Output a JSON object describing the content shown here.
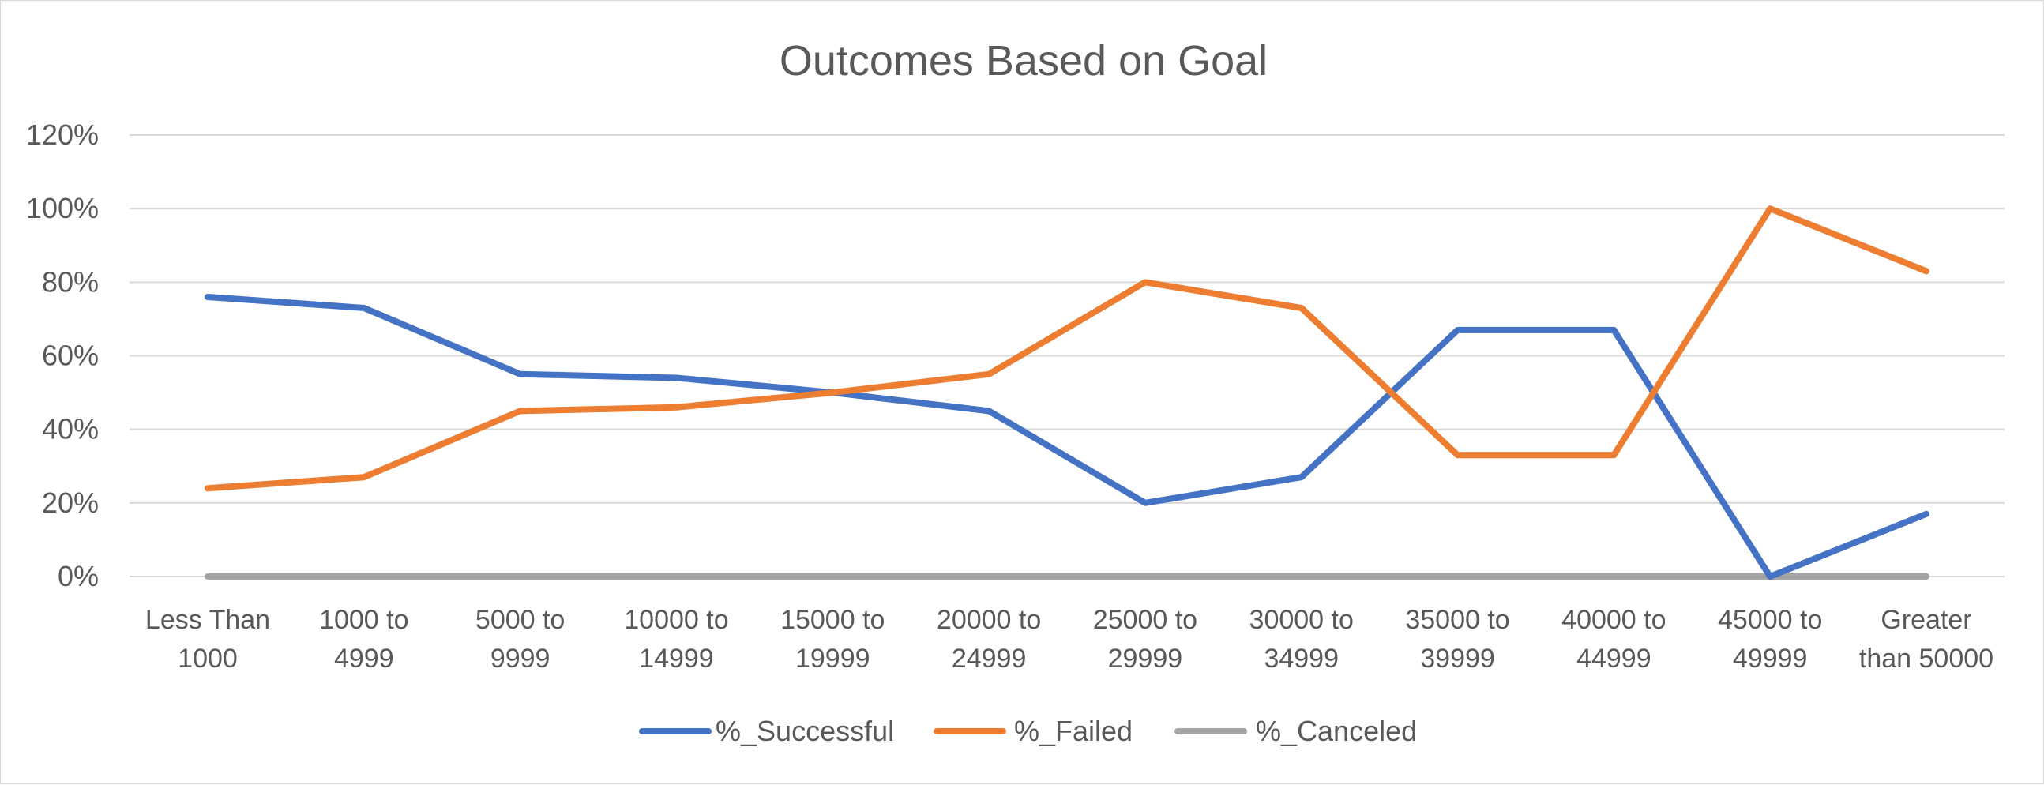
{
  "chart_data": {
    "type": "line",
    "title": "Outcomes Based on Goal",
    "xlabel": "",
    "ylabel": "",
    "ylim": [
      0,
      120
    ],
    "ytick_step": 20,
    "ytick_labels": [
      "0%",
      "20%",
      "40%",
      "60%",
      "80%",
      "100%",
      "120%"
    ],
    "grid": true,
    "legend_position": "bottom",
    "categories": [
      [
        "Less Than",
        "1000"
      ],
      [
        "1000 to",
        "4999"
      ],
      [
        "5000 to",
        "9999"
      ],
      [
        "10000 to",
        "14999"
      ],
      [
        "15000 to",
        "19999"
      ],
      [
        "20000 to",
        "24999"
      ],
      [
        "25000 to",
        "29999"
      ],
      [
        "30000 to",
        "34999"
      ],
      [
        "35000 to",
        "39999"
      ],
      [
        "40000 to",
        "44999"
      ],
      [
        "45000 to",
        "49999"
      ],
      [
        "Greater",
        "than 50000"
      ]
    ],
    "series": [
      {
        "name": "%_Successful",
        "color": "#4472C4",
        "values": [
          76,
          73,
          55,
          54,
          50,
          45,
          20,
          27,
          67,
          67,
          0,
          17
        ]
      },
      {
        "name": "%_Failed",
        "color": "#ED7D31",
        "values": [
          24,
          27,
          45,
          46,
          50,
          55,
          80,
          73,
          33,
          33,
          100,
          83
        ]
      },
      {
        "name": "%_Canceled",
        "color": "#A5A5A5",
        "values": [
          0,
          0,
          0,
          0,
          0,
          0,
          0,
          0,
          0,
          0,
          0,
          0
        ]
      }
    ]
  }
}
